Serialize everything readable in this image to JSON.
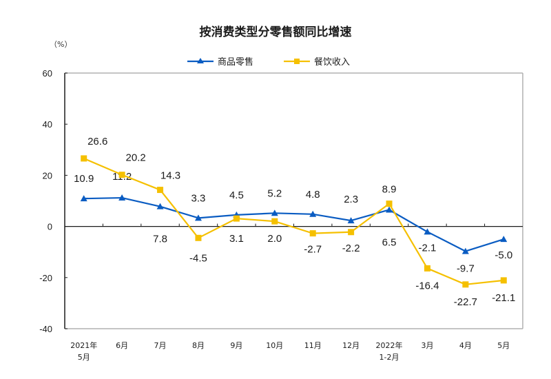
{
  "chart_data": {
    "type": "line",
    "title": "按消费类型分零售额同比增速",
    "ylabel": "（%）",
    "xlabel": "",
    "ylim": [
      -40,
      60
    ],
    "yticks": [
      60,
      40,
      20,
      0,
      -20,
      -40
    ],
    "grid": false,
    "legend_position": "top-center",
    "categories": [
      [
        "2021年",
        "5月"
      ],
      [
        "6月"
      ],
      [
        "7月"
      ],
      [
        "8月"
      ],
      [
        "9月"
      ],
      [
        "10月"
      ],
      [
        "11月"
      ],
      [
        "12月"
      ],
      [
        "2022年",
        "1-2月"
      ],
      [
        "3月"
      ],
      [
        "4月"
      ],
      [
        "5月"
      ]
    ],
    "series": [
      {
        "name": "商品零售",
        "color": "#0a5cc2",
        "marker": "triangle",
        "values": [
          10.9,
          11.2,
          7.8,
          3.3,
          4.5,
          5.2,
          4.8,
          2.3,
          6.5,
          -2.1,
          -9.7,
          -5.0
        ],
        "labels": [
          "10.9",
          "11.2",
          "7.8",
          "3.3",
          "4.5",
          "5.2",
          "4.8",
          "2.3",
          "6.5",
          "-2.1",
          "-9.7",
          "-5.0"
        ]
      },
      {
        "name": "餐饮收入",
        "color": "#f5c000",
        "marker": "square",
        "values": [
          26.6,
          20.2,
          14.3,
          -4.5,
          3.1,
          2.0,
          -2.7,
          -2.2,
          8.9,
          -16.4,
          -22.7,
          -21.1
        ],
        "labels": [
          "26.6",
          "20.2",
          "14.3",
          "-4.5",
          "3.1",
          "2.0",
          "-2.7",
          "-2.2",
          "8.9",
          "-16.4",
          "-22.7",
          "-21.1"
        ]
      }
    ]
  }
}
